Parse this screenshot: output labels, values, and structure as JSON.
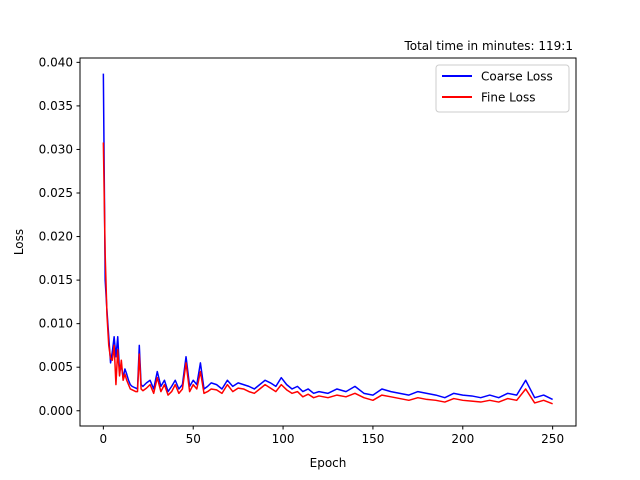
{
  "chart_data": {
    "type": "line",
    "title": "Total time in minutes: 119:1",
    "xlabel": "Epoch",
    "ylabel": "Loss",
    "xlim": [
      -13,
      263
    ],
    "ylim": [
      -0.00175,
      0.0405
    ],
    "xticks": [
      0,
      50,
      100,
      150,
      200,
      250
    ],
    "xtick_labels": [
      "0",
      "50",
      "100",
      "150",
      "200",
      "250"
    ],
    "yticks": [
      0.0,
      0.005,
      0.01,
      0.015,
      0.02,
      0.025,
      0.03,
      0.035,
      0.04
    ],
    "ytick_labels": [
      "0.000",
      "0.005",
      "0.010",
      "0.015",
      "0.020",
      "0.025",
      "0.030",
      "0.035",
      "0.040"
    ],
    "grid": false,
    "legend_position": "top-right",
    "series": [
      {
        "name": "Coarse Loss",
        "color": "#0000ff",
        "x": [
          0,
          1,
          2,
          3,
          4,
          5,
          6,
          7,
          8,
          9,
          10,
          11,
          12,
          13,
          14,
          15,
          16,
          17,
          18,
          19,
          20,
          21,
          22,
          24,
          26,
          28,
          30,
          32,
          34,
          36,
          38,
          40,
          42,
          44,
          46,
          48,
          50,
          52,
          54,
          56,
          58,
          60,
          63,
          66,
          69,
          72,
          75,
          78,
          81,
          84,
          87,
          90,
          93,
          96,
          99,
          102,
          105,
          108,
          111,
          114,
          117,
          120,
          125,
          130,
          135,
          140,
          145,
          150,
          155,
          160,
          165,
          170,
          175,
          180,
          185,
          190,
          195,
          200,
          205,
          210,
          215,
          220,
          225,
          230,
          235,
          240,
          245,
          250
        ],
        "y": [
          0.0387,
          0.015,
          0.0115,
          0.0085,
          0.0055,
          0.0068,
          0.0085,
          0.0062,
          0.0085,
          0.0045,
          0.0052,
          0.0038,
          0.0048,
          0.0042,
          0.0035,
          0.003,
          0.0028,
          0.0027,
          0.0026,
          0.0025,
          0.0075,
          0.003,
          0.0028,
          0.0032,
          0.0035,
          0.0025,
          0.0045,
          0.0028,
          0.0035,
          0.0022,
          0.0028,
          0.0035,
          0.0025,
          0.003,
          0.0062,
          0.0028,
          0.0035,
          0.003,
          0.0055,
          0.0025,
          0.0028,
          0.0032,
          0.003,
          0.0025,
          0.0035,
          0.0028,
          0.0032,
          0.003,
          0.0028,
          0.0025,
          0.003,
          0.0035,
          0.0032,
          0.0028,
          0.0038,
          0.003,
          0.0025,
          0.0028,
          0.0022,
          0.0025,
          0.002,
          0.0022,
          0.002,
          0.0025,
          0.0022,
          0.0028,
          0.002,
          0.0018,
          0.0025,
          0.0022,
          0.002,
          0.0018,
          0.0022,
          0.002,
          0.0018,
          0.0015,
          0.002,
          0.0018,
          0.0017,
          0.0015,
          0.0018,
          0.0015,
          0.002,
          0.0018,
          0.0035,
          0.0015,
          0.0018,
          0.0013
        ]
      },
      {
        "name": "Fine Loss",
        "color": "#ff0000",
        "x": [
          0,
          1,
          2,
          3,
          4,
          5,
          6,
          7,
          8,
          9,
          10,
          11,
          12,
          13,
          14,
          15,
          16,
          17,
          18,
          19,
          20,
          21,
          22,
          24,
          26,
          28,
          30,
          32,
          34,
          36,
          38,
          40,
          42,
          44,
          46,
          48,
          50,
          52,
          54,
          56,
          58,
          60,
          63,
          66,
          69,
          72,
          75,
          78,
          81,
          84,
          87,
          90,
          93,
          96,
          99,
          102,
          105,
          108,
          111,
          114,
          117,
          120,
          125,
          130,
          135,
          140,
          145,
          150,
          155,
          160,
          165,
          170,
          175,
          180,
          185,
          190,
          195,
          200,
          205,
          210,
          215,
          220,
          225,
          230,
          235,
          240,
          245,
          250
        ],
        "y": [
          0.0308,
          0.018,
          0.011,
          0.0075,
          0.006,
          0.0058,
          0.0075,
          0.003,
          0.007,
          0.004,
          0.0058,
          0.0035,
          0.0042,
          0.0035,
          0.003,
          0.0025,
          0.0024,
          0.0023,
          0.0022,
          0.0022,
          0.0065,
          0.0025,
          0.0023,
          0.0026,
          0.003,
          0.002,
          0.0038,
          0.0022,
          0.003,
          0.0018,
          0.0022,
          0.003,
          0.002,
          0.0025,
          0.0055,
          0.0022,
          0.003,
          0.0025,
          0.0045,
          0.002,
          0.0022,
          0.0025,
          0.0024,
          0.002,
          0.003,
          0.0022,
          0.0026,
          0.0025,
          0.0022,
          0.002,
          0.0025,
          0.003,
          0.0026,
          0.0022,
          0.003,
          0.0024,
          0.002,
          0.0022,
          0.0016,
          0.0019,
          0.0015,
          0.0017,
          0.0015,
          0.0018,
          0.0016,
          0.002,
          0.0015,
          0.0012,
          0.0018,
          0.0016,
          0.0014,
          0.0012,
          0.0015,
          0.0013,
          0.0012,
          0.001,
          0.0014,
          0.0012,
          0.0011,
          0.001,
          0.0012,
          0.001,
          0.0014,
          0.0012,
          0.0025,
          0.0009,
          0.0012,
          0.0008
        ]
      }
    ]
  }
}
